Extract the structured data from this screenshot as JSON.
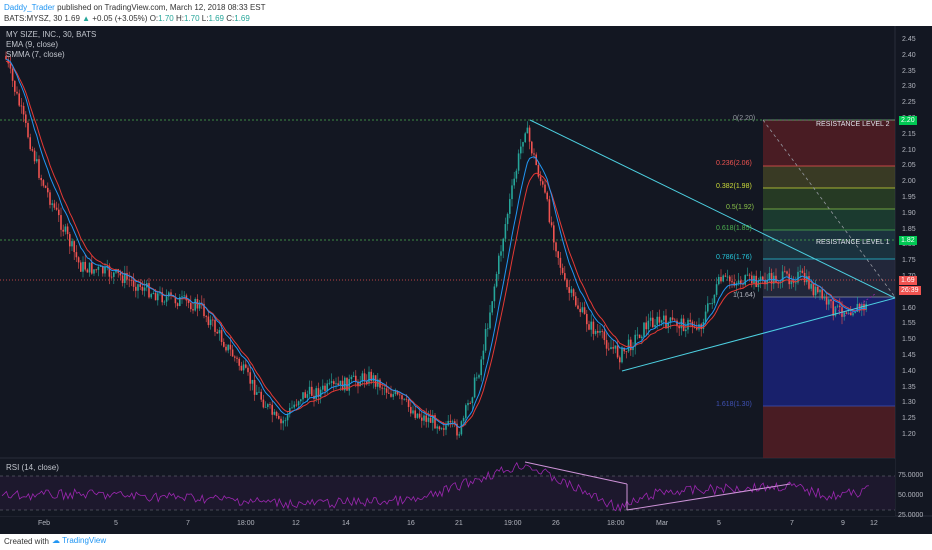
{
  "header": {
    "author": "Daddy_Trader",
    "published_text": "published on TradingView.com, March 12, 2018 08:33 EST",
    "symbol": "BATS:MYSZ, 30",
    "last_price": "1.69",
    "change": "+0.05 (+3.05%)",
    "ohlc": {
      "o_label": "O:",
      "o": "1.70",
      "h_label": "H:",
      "h": "1.70",
      "l_label": "L:",
      "l": "1.69",
      "c_label": "C:",
      "c": "1.69"
    }
  },
  "legend": {
    "title": "MY SIZE, INC., 30, BATS",
    "ema": "EMA (9, close)",
    "smma": "SMMA (7, close)",
    "rsi": "RSI (14, close)"
  },
  "price_axis": [
    "2.45",
    "2.40",
    "2.35",
    "2.30",
    "2.25",
    "2.20",
    "2.15",
    "2.10",
    "2.05",
    "2.00",
    "1.95",
    "1.90",
    "1.85",
    "1.80",
    "1.75",
    "1.70",
    "1.65",
    "1.60",
    "1.55",
    "1.50",
    "1.45",
    "1.40",
    "1.35",
    "1.30",
    "1.25",
    "1.20"
  ],
  "rsi_axis": [
    "75.0000",
    "50.0000",
    "25.0000"
  ],
  "time_axis": [
    "Feb",
    "5",
    "7",
    "18:00",
    "12",
    "14",
    "16",
    "21",
    "19:00",
    "26",
    "18:00",
    "Mar",
    "5",
    "7",
    "9",
    "12"
  ],
  "price_tags": {
    "res2": "2.20",
    "res1": "1.82",
    "current": "1.69",
    "timer": "26:39"
  },
  "fib_labels": [
    "0(2.20)",
    "0.236(2.06)",
    "0.382(1.98)",
    "0.5(1.92)",
    "0.618(1.85)",
    "0.786(1.76)",
    "1(1.64)",
    "1.618(1.30)"
  ],
  "resistance_labels": [
    "RESISTANCE LEVEL 2",
    "RESISTANCE LEVEL 1"
  ],
  "footer": {
    "created": "Created with",
    "brand": "TradingView"
  },
  "colors": {
    "bg": "#131722",
    "up": "#26a69a",
    "down": "#ef5350",
    "ema": "#2196f3",
    "smma": "#e53935",
    "trend": "#4dd0e1",
    "rsi": "#9c27b0",
    "res_line": "#4caf50"
  }
}
